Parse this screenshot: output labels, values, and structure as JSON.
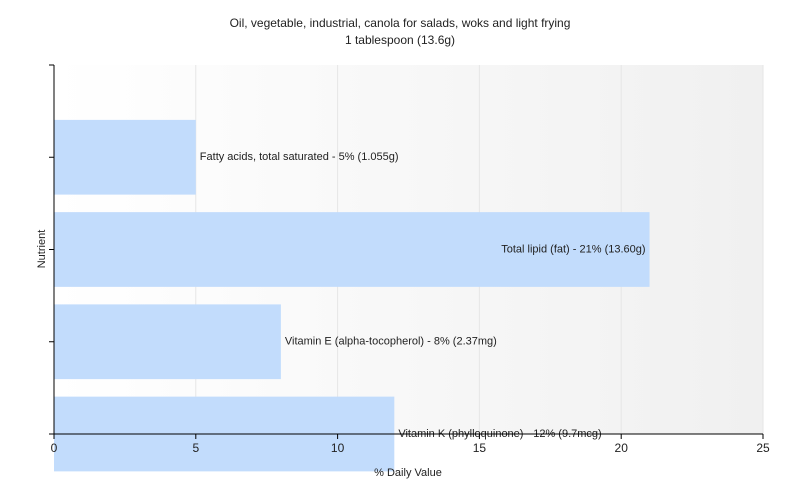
{
  "chart_data": {
    "type": "bar",
    "orientation": "horizontal",
    "title": "Oil, vegetable, industrial, canola for salads, woks and light frying",
    "subtitle": "1 tablespoon (13.6g)",
    "xlabel": "% Daily Value",
    "ylabel": "Nutrient",
    "xlim": [
      0,
      25
    ],
    "xticks": [
      0,
      5,
      10,
      15,
      20,
      25
    ],
    "grid": true,
    "categories": [
      "Fatty acids, total saturated",
      "Total lipid (fat)",
      "Vitamin E (alpha-tocopherol)",
      "Vitamin K (phylloquinone)"
    ],
    "values": [
      5,
      21,
      8,
      12
    ],
    "data_labels": [
      "Fatty acids, total saturated - 5% (1.055g)",
      "Total lipid (fat) - 21% (13.60g)",
      "Vitamin E (alpha-tocopherol) - 8% (2.37mg)",
      "Vitamin K (phylloquinone) - 12% (9.7mcg)"
    ],
    "colors": {
      "bar": "#c2dcfc",
      "grid": "#e6e6e6",
      "axis": "#000000",
      "background_start": "#ffffff",
      "background_end": "#f0f0f0"
    }
  }
}
